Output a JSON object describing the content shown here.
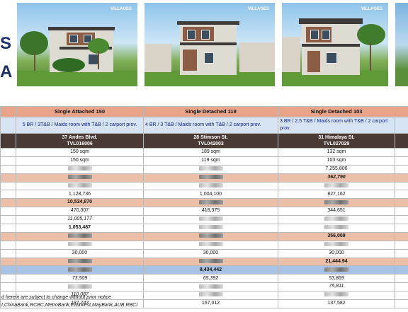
{
  "logo_fragments": [
    "S",
    "A"
  ],
  "photos": [
    {
      "brand": "VILLAGES"
    },
    {
      "brand": "VILLAGES"
    },
    {
      "brand": "VILLAGES"
    }
  ],
  "caption": {
    "line1": "",
    "line2": ""
  },
  "columns": [
    {
      "model": "Single Attached 150",
      "description": "5 BR / 3T&B / Maids room with  T&B / 2 carport prov.",
      "address": "37 Andes Blvd.",
      "code": "TVL016006",
      "values": [
        "150 sqm",
        "150 sqm",
        "",
        "",
        "",
        "1,128,736",
        "10,534,870",
        "470,307",
        "11,005,177",
        "1,053,487",
        "",
        "",
        "30,000",
        "",
        "",
        "73,509",
        "",
        "110,087",
        "187,743"
      ]
    },
    {
      "model": "Single Detached 119",
      "description": "4 BR  / 3 T&B / Maids room with  T&B / 2 carport prov.",
      "address": "28 Stimson St.",
      "code": "TVL042003",
      "values": [
        "189 sqm",
        "119 sqm",
        "",
        "",
        "",
        "1,004,100",
        "",
        "418,375",
        "",
        "",
        "",
        "",
        "30,000",
        "",
        "8,434,442",
        "65,392",
        "",
        "",
        "167,012"
      ]
    },
    {
      "model": "Single Detached 103",
      "description": "3 BR  / 2.5 T&B / Maids room with T&B / 2 carport prov.",
      "address": "31 Himalaya St.",
      "code": "TVL027029",
      "values": [
        "132 sqm",
        "103 sqm",
        "7,255,806",
        "",
        "362,790",
        "827,162",
        "",
        "344,651",
        "",
        "",
        "356,009",
        "",
        "30,000",
        "21,444.94",
        "",
        "53,869",
        "75,811",
        "",
        "137,582"
      ]
    }
  ],
  "notes": {
    "line1": "d herein are subject to change without prior notice",
    "line2": "I,ChinaBank,RCBC,MetroBank,Eastwest,MayBank,AUB,RBCI"
  }
}
